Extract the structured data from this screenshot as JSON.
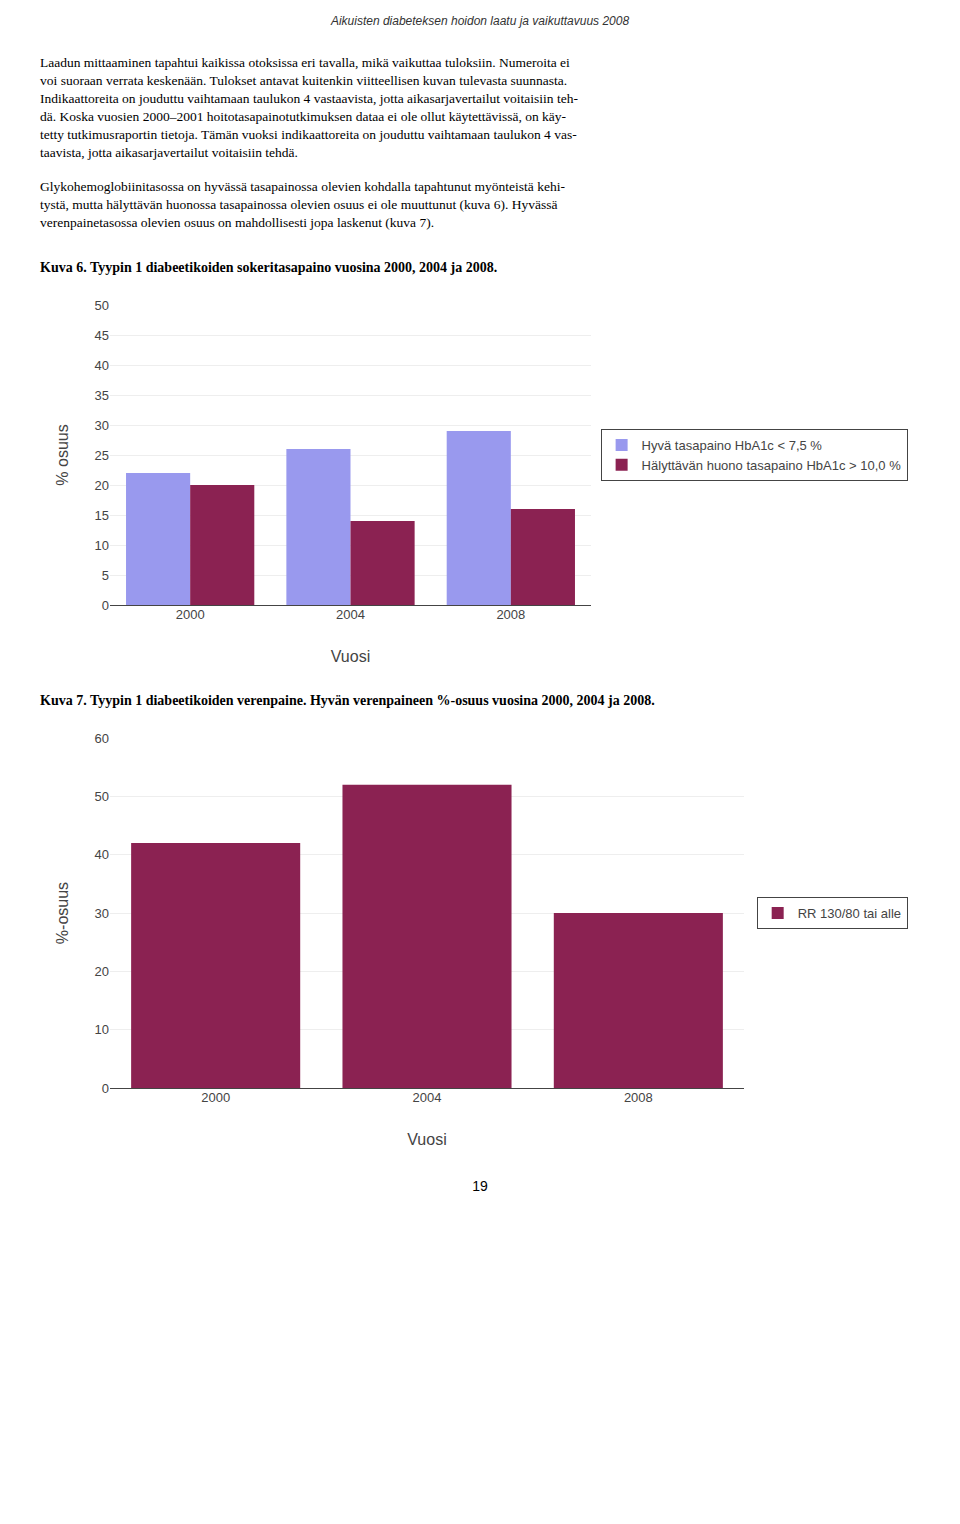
{
  "header": "Aikuisten diabeteksen hoidon laatu ja vaikuttavuus 2008",
  "body": [
    [
      "Laadun mittaaminen tapahtui kaikissa otoksissa eri tavalla, mikä vaikuttaa tuloksiin. Numeroita ei",
      "voi suoraan verrata keskenään. Tulokset antavat kuitenkin viitteellisen kuvan tulevasta suunnasta.",
      "Indikaattoreita on jouduttu vaihtamaan taulukon 4 vastaavista, jotta aikasarjavertailut voitaisiin teh-",
      "dä. Koska vuosien 2000–2001 hoitotasapainotutkimuksen dataa ei ole ollut käytettävissä, on käy-",
      "tetty tutkimusraportin tietoja. Tämän vuoksi indikaattoreita on jouduttu vaihtamaan taulukon 4 vas-",
      "taavista, jotta aikasarjavertailut voitaisiin tehdä."
    ],
    [
      "Glykohemoglobiinitasossa on hyvässä tasapainossa olevien kohdalla tapahtunut myönteistä kehi-",
      "tystä, mutta hälyttävän huonossa tasapainossa olevien osuus ei ole muuttunut (kuva 6).  Hyvässä",
      "verenpainetasossa olevien osuus on mahdollisesti jopa laskenut (kuva 7)."
    ]
  ],
  "chart_data": [
    {
      "type": "bar",
      "title": "Kuva 6. Tyypin 1 diabeetikoiden sokeritasapaino vuosina 2000, 2004 ja 2008.",
      "categories": [
        "2000",
        "2004",
        "2008"
      ],
      "series": [
        {
          "name": "Hyvä tasapaino HbA1c < 7,5 %",
          "color": "#9999EE",
          "values": [
            22,
            26,
            29
          ]
        },
        {
          "name": "Hälyttävän huono tasapaino HbA1c > 10,0 %",
          "color": "#8B2252",
          "values": [
            20,
            14,
            16
          ]
        }
      ],
      "xlabel": "Vuosi",
      "ylabel": "% osuus",
      "ylim": [
        0,
        50
      ],
      "yticks": [
        0,
        5,
        10,
        15,
        20,
        25,
        30,
        35,
        40,
        45,
        50
      ],
      "grid": true,
      "legend": "right"
    },
    {
      "type": "bar",
      "title": "Kuva 7. Tyypin 1 diabeetikoiden verenpaine. Hyvän verenpaineen %-osuus vuosina 2000, 2004 ja 2008.",
      "categories": [
        "2000",
        "2004",
        "2008"
      ],
      "series": [
        {
          "name": "RR 130/80 tai alle",
          "color": "#8B2252",
          "values": [
            42,
            52,
            30
          ]
        }
      ],
      "xlabel": "Vuosi",
      "ylabel": "%-osuus",
      "ylim": [
        0,
        60
      ],
      "yticks": [
        0,
        10,
        20,
        30,
        40,
        50,
        60
      ],
      "grid": true,
      "legend": "right"
    }
  ],
  "page_number": "19"
}
